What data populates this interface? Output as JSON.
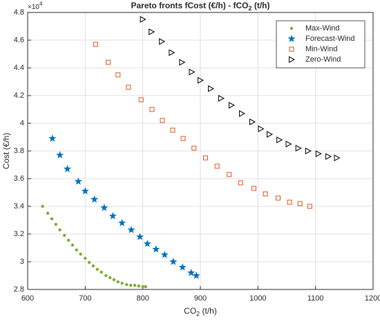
{
  "chart_data": {
    "type": "scatter",
    "title_parts": [
      "Pareto fronts fCost (€/h) - fCO",
      "2",
      " (t/h)"
    ],
    "xlabel_parts": [
      "CO",
      "2",
      " (t/h)"
    ],
    "ylabel": "Cost (€/h)",
    "y_scale_label": {
      "base": "×10",
      "exponent": "4"
    },
    "xlim": [
      600,
      1200
    ],
    "xticks": [
      600,
      700,
      800,
      900,
      1000,
      1100,
      1200
    ],
    "ylim": [
      2.8,
      4.8
    ],
    "yticks": [
      2.8,
      3,
      3.2,
      3.4,
      3.6,
      3.8,
      4,
      4.2,
      4.4,
      4.6,
      4.8
    ],
    "grid": true,
    "legend": "northeast",
    "series": [
      {
        "name": "Max-Wind",
        "color": "#77ac30",
        "marker": "dot",
        "x": [
          626,
          635,
          642,
          649,
          656,
          664,
          671,
          678,
          685,
          692,
          700,
          707,
          714,
          721,
          728,
          736,
          743,
          750,
          757,
          764,
          772,
          779,
          786,
          793,
          800,
          805
        ],
        "values": [
          3.4,
          3.35,
          3.31,
          3.27,
          3.23,
          3.19,
          3.155,
          3.12,
          3.085,
          3.055,
          3.025,
          2.995,
          2.97,
          2.945,
          2.925,
          2.9,
          2.885,
          2.87,
          2.855,
          2.845,
          2.835,
          2.83,
          2.83,
          2.825,
          2.82,
          2.82
        ]
      },
      {
        "name": "Forecast-Wind",
        "color": "#0072bd",
        "marker": "star",
        "x": [
          643,
          656,
          669,
          688,
          700,
          716,
          733,
          748,
          764,
          780,
          795,
          808,
          823,
          838,
          853,
          869,
          884,
          893
        ],
        "values": [
          3.89,
          3.77,
          3.67,
          3.58,
          3.51,
          3.45,
          3.39,
          3.33,
          3.28,
          3.23,
          3.18,
          3.13,
          3.09,
          3.05,
          3.0,
          2.96,
          2.92,
          2.9
        ]
      },
      {
        "name": "Min-Wind",
        "color": "#d95319",
        "marker": "square",
        "x": [
          718,
          740,
          757,
          775,
          797,
          816,
          834,
          852,
          870,
          889,
          909,
          929,
          950,
          970,
          993,
          1013,
          1035,
          1055,
          1073,
          1090
        ],
        "values": [
          4.57,
          4.44,
          4.35,
          4.26,
          4.17,
          4.1,
          4.02,
          3.95,
          3.89,
          3.82,
          3.75,
          3.69,
          3.63,
          3.57,
          3.53,
          3.49,
          3.46,
          3.43,
          3.42,
          3.4
        ]
      },
      {
        "name": "Zero-Wind",
        "color": "#000000",
        "marker": "triangle-right",
        "x": [
          800,
          815,
          833,
          850,
          868,
          885,
          900,
          918,
          936,
          954,
          972,
          990,
          1005,
          1020,
          1037,
          1053,
          1070,
          1087,
          1105,
          1122,
          1137
        ],
        "values": [
          4.75,
          4.66,
          4.59,
          4.51,
          4.44,
          4.37,
          4.31,
          4.25,
          4.18,
          4.13,
          4.07,
          4.01,
          3.96,
          3.92,
          3.88,
          3.85,
          3.82,
          3.8,
          3.78,
          3.76,
          3.75
        ]
      }
    ]
  }
}
